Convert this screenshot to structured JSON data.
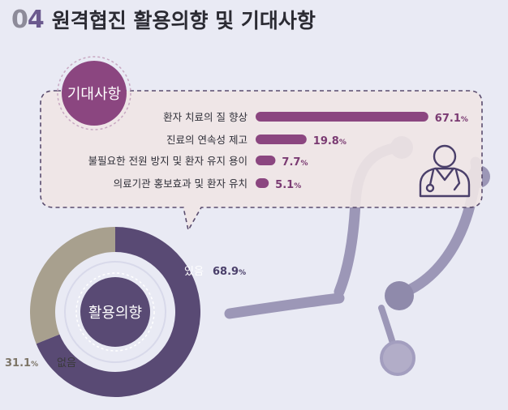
{
  "header": {
    "number_prefix": "0",
    "number_suffix": "4",
    "title": "원격협진 활용의향 및 기대사항"
  },
  "expectations_label": "기대사항",
  "intent_label": "활용의향",
  "colors": {
    "bar": "#8b4680",
    "bar_text": "#7a3a72",
    "donut_yes": "#594a74",
    "donut_no": "#a8a08e",
    "stethoscope": "#9c97b7",
    "dash": "#5a4c6e"
  },
  "icons": [
    "doctor-icon",
    "stethoscope-icon"
  ],
  "chart_data": [
    {
      "type": "bar",
      "orientation": "horizontal",
      "title": "",
      "categories": [
        "환자 치료의 질 향상",
        "진료의 연속성 제고",
        "불필요한 전원 방지 및 환자 유지 용이",
        "의료기관 홍보효과 및 환자 유치"
      ],
      "values": [
        67.1,
        19.8,
        7.7,
        5.1
      ],
      "unit": "%",
      "xlim": [
        0,
        70
      ]
    },
    {
      "type": "pie",
      "donut": true,
      "title": "",
      "categories": [
        "있음",
        "없음"
      ],
      "values": [
        68.9,
        31.1
      ],
      "unit": "%"
    }
  ]
}
